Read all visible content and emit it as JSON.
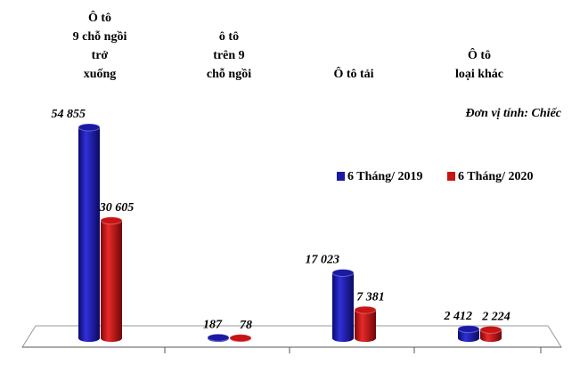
{
  "chart_data": {
    "type": "cylinder-bar",
    "categories": [
      [
        "Ô tô",
        "9 chỗ ngồi",
        "trở",
        "xuống"
      ],
      [
        "ô tô",
        "trên 9",
        "chỗ ngồi"
      ],
      [
        "Ô tô tải"
      ],
      [
        "Ô tô",
        "loại khác"
      ]
    ],
    "annotation": "Đơn vị tính: Chiếc",
    "series": [
      {
        "name": "6 Tháng/ 2019",
        "color": "#1a1aa6",
        "values": [
          54855,
          187,
          17023,
          2412
        ],
        "value_labels": [
          "54 855",
          "187",
          "17 023",
          "2 412"
        ]
      },
      {
        "name": "6 Tháng/ 2020",
        "color": "#c81414",
        "values": [
          30605,
          78,
          7381,
          2224
        ],
        "value_labels": [
          "30 605",
          "78",
          "7 381",
          "2 224"
        ]
      }
    ]
  }
}
